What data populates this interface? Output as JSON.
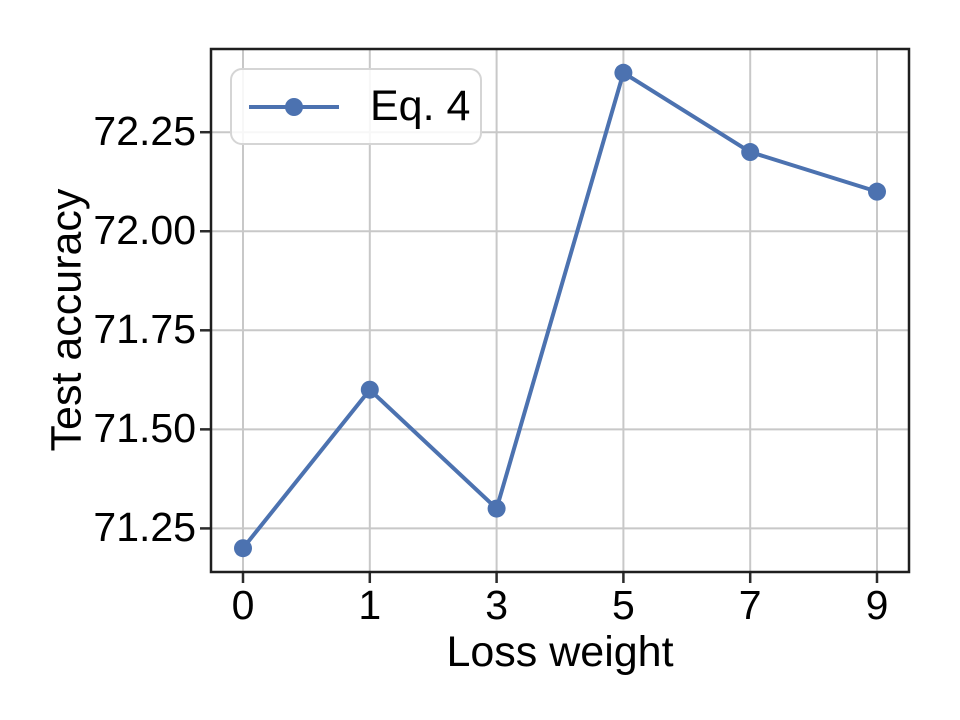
{
  "chart_data": {
    "type": "line",
    "title": "",
    "xlabel": "Loss weight",
    "ylabel": "Test accuracy",
    "x_tick_labels": [
      "0",
      "1",
      "3",
      "5",
      "7",
      "9"
    ],
    "series": [
      {
        "name": "Eq. 4",
        "marker": "circle",
        "values": [
          71.2,
          71.6,
          71.3,
          72.4,
          72.2,
          72.1
        ]
      }
    ],
    "y_ticks": [
      71.25,
      71.5,
      71.75,
      72.0,
      72.25
    ],
    "y_tick_labels": [
      "71.25",
      "71.50",
      "71.75",
      "72.00",
      "72.25"
    ],
    "ylim": [
      71.14,
      72.46
    ],
    "grid": true,
    "legend_position": "upper-left",
    "colors": {
      "line": "#4c72b0",
      "grid": "#c8c8c8",
      "spine": "#1f1f1f",
      "tick": "#2b2b2b",
      "text": "#000000",
      "legend_border": "#d5d5d5"
    }
  }
}
